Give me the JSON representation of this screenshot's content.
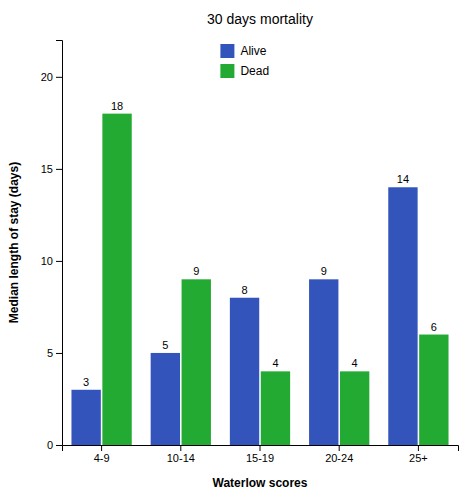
{
  "chart_data": {
    "type": "bar",
    "title": "30 days mortality",
    "xlabel": "Waterlow scores",
    "ylabel": "Median length of stay (days)",
    "categories": [
      "4-9",
      "10-14",
      "15-19",
      "20-24",
      "25+"
    ],
    "series": [
      {
        "name": "Alive",
        "color": "#3355bb",
        "values": [
          3,
          5,
          8,
          9,
          14
        ]
      },
      {
        "name": "Dead",
        "color": "#22aa33",
        "values": [
          18,
          9,
          4,
          4,
          6
        ]
      }
    ],
    "ylim": [
      0,
      22
    ],
    "yticks": [
      0,
      5,
      10,
      15,
      20
    ],
    "grid": false,
    "legend": "top",
    "data_labels": true
  }
}
